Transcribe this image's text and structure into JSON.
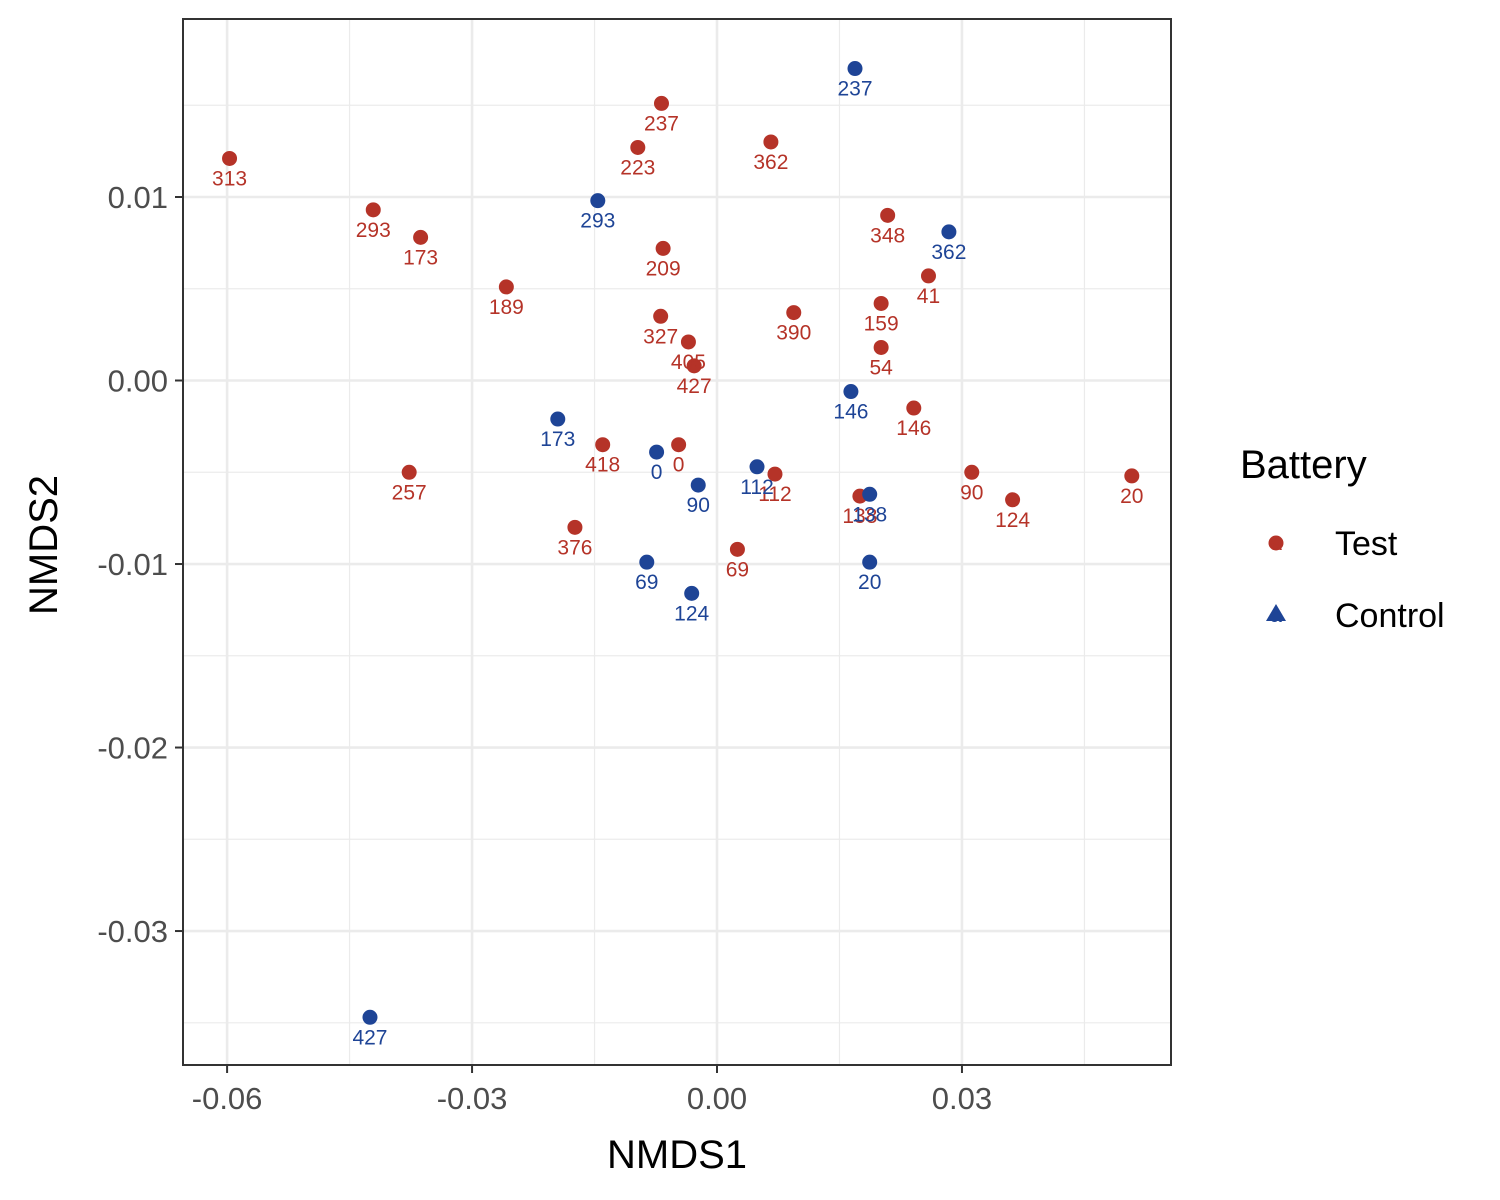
{
  "chart_data": {
    "type": "scatter",
    "xlabel": "NMDS1",
    "ylabel": "NMDS2",
    "xlim": [
      -0.0654,
      0.0556
    ],
    "ylim": [
      -0.0373,
      0.0197
    ],
    "x_ticks": [
      "-0.06",
      "-0.03",
      "0.00",
      "0.03"
    ],
    "x_tick_values": [
      -0.06,
      -0.03,
      0.0,
      0.03
    ],
    "y_ticks": [
      "0.01",
      "0.00",
      "-0.01",
      "-0.02",
      "-0.03"
    ],
    "y_tick_values": [
      0.01,
      0.0,
      -0.01,
      -0.02,
      -0.03
    ],
    "grid": true,
    "legend": {
      "title": "Battery",
      "placement": "right",
      "entries": [
        {
          "label": "Test",
          "color": "#B53328",
          "shape": "circle"
        },
        {
          "label": "Control",
          "color": "#1E4496",
          "shape": "triangle"
        }
      ]
    },
    "series": [
      {
        "name": "Test",
        "color": "#B53328",
        "points": [
          {
            "x": -0.0597,
            "y": 0.0121,
            "label": "313"
          },
          {
            "x": -0.0421,
            "y": 0.0093,
            "label": "293"
          },
          {
            "x": -0.0363,
            "y": 0.0078,
            "label": "173"
          },
          {
            "x": -0.0258,
            "y": 0.0051,
            "label": "189"
          },
          {
            "x": -0.0068,
            "y": 0.0151,
            "label": "237"
          },
          {
            "x": -0.0097,
            "y": 0.0127,
            "label": "223"
          },
          {
            "x": -0.0066,
            "y": 0.0072,
            "label": "209"
          },
          {
            "x": -0.0069,
            "y": 0.0035,
            "label": "327"
          },
          {
            "x": -0.0035,
            "y": 0.0021,
            "label": "405"
          },
          {
            "x": -0.0028,
            "y": 0.0008,
            "label": "427"
          },
          {
            "x": 0.0066,
            "y": 0.013,
            "label": "362"
          },
          {
            "x": 0.0094,
            "y": 0.0037,
            "label": "390"
          },
          {
            "x": 0.0209,
            "y": 0.009,
            "label": "348"
          },
          {
            "x": 0.0259,
            "y": 0.0057,
            "label": "41"
          },
          {
            "x": 0.0201,
            "y": 0.0042,
            "label": "159"
          },
          {
            "x": 0.0201,
            "y": 0.0018,
            "label": "54"
          },
          {
            "x": 0.0241,
            "y": -0.0015,
            "label": "146"
          },
          {
            "x": -0.0377,
            "y": -0.005,
            "label": "257"
          },
          {
            "x": -0.014,
            "y": -0.0035,
            "label": "418"
          },
          {
            "x": -0.0047,
            "y": -0.0035,
            "label": "0"
          },
          {
            "x": -0.0174,
            "y": -0.008,
            "label": "376"
          },
          {
            "x": 0.0025,
            "y": -0.0092,
            "label": "69"
          },
          {
            "x": 0.0071,
            "y": -0.0051,
            "label": "112"
          },
          {
            "x": 0.0175,
            "y": -0.0063,
            "label": "138"
          },
          {
            "x": 0.0312,
            "y": -0.005,
            "label": "90"
          },
          {
            "x": 0.0362,
            "y": -0.0065,
            "label": "124"
          },
          {
            "x": 0.0508,
            "y": -0.0052,
            "label": "20"
          }
        ]
      },
      {
        "name": "Control",
        "color": "#1E4496",
        "points": [
          {
            "x": 0.0169,
            "y": 0.017,
            "label": "237"
          },
          {
            "x": -0.0146,
            "y": 0.0098,
            "label": "293"
          },
          {
            "x": 0.0284,
            "y": 0.0081,
            "label": "362"
          },
          {
            "x": 0.0164,
            "y": -0.0006,
            "label": "146"
          },
          {
            "x": -0.0195,
            "y": -0.0021,
            "label": "173"
          },
          {
            "x": -0.0074,
            "y": -0.0039,
            "label": "0"
          },
          {
            "x": -0.0023,
            "y": -0.0057,
            "label": "90"
          },
          {
            "x": 0.0049,
            "y": -0.0047,
            "label": "112"
          },
          {
            "x": 0.0187,
            "y": -0.0062,
            "label": "138"
          },
          {
            "x": -0.0086,
            "y": -0.0099,
            "label": "69"
          },
          {
            "x": -0.0031,
            "y": -0.0116,
            "label": "124"
          },
          {
            "x": 0.0187,
            "y": -0.0099,
            "label": "20"
          },
          {
            "x": -0.0425,
            "y": -0.0347,
            "label": "427"
          }
        ]
      }
    ]
  }
}
